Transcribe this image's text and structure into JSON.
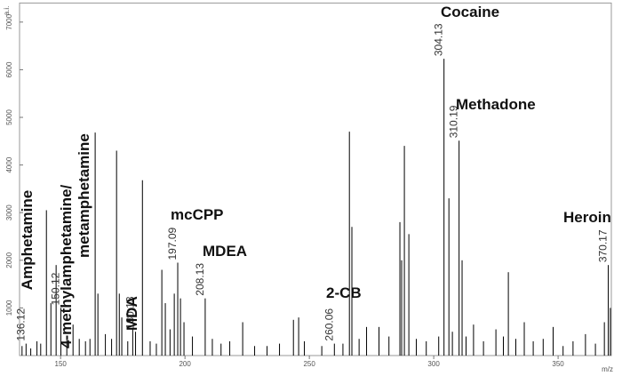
{
  "chart_data": {
    "type": "spectrum",
    "y_axis_label": "a.i.",
    "x_axis_label": "m/z",
    "xlim": [
      133.5,
      371.4
    ],
    "ylim": [
      0,
      7400
    ],
    "xticks": [
      150,
      200,
      250,
      300,
      350
    ],
    "yticks": [
      1000,
      2000,
      3000,
      4000,
      5000,
      6000,
      7000
    ],
    "color": "#000000",
    "x": [
      134.5,
      138.0,
      140.5,
      142.0,
      144.3,
      146.1,
      148.2,
      152.5,
      155.0,
      157.5,
      160.0,
      161.8,
      163.9,
      165.0,
      168.0,
      170.5,
      172.5,
      173.6,
      174.6,
      177.0,
      179.0,
      182.9,
      186.0,
      188.5,
      190.7,
      192.1,
      194.0,
      195.7,
      198.2,
      199.6,
      203.0,
      211.0,
      214.5,
      218.0,
      223.2,
      228.0,
      233.0,
      238.0,
      243.6,
      245.7,
      248.0,
      255.0,
      263.5,
      266.1,
      267.1,
      270.0,
      273.0,
      278.0,
      282.0,
      286.4,
      287.1,
      288.2,
      290.0,
      293.0,
      297.0,
      302.0,
      306.1,
      307.5,
      311.4,
      313.0,
      316.0,
      320.0,
      325.0,
      328.0,
      330.0,
      333.0,
      336.4,
      340.0,
      344.0,
      348.0,
      352.0,
      356.0,
      361.0,
      365.0,
      368.6,
      371.0
    ],
    "values": [
      200,
      150,
      300,
      250,
      3050,
      1100,
      1900,
      400,
      650,
      350,
      300,
      350,
      4680,
      1300,
      450,
      350,
      4300,
      1300,
      800,
      300,
      550,
      3680,
      300,
      250,
      1800,
      1100,
      550,
      1300,
      1200,
      700,
      400,
      350,
      250,
      300,
      700,
      200,
      200,
      250,
      750,
      800,
      300,
      200,
      250,
      4700,
      2700,
      350,
      600,
      600,
      400,
      2800,
      2000,
      4400,
      2550,
      350,
      300,
      400,
      3300,
      500,
      2000,
      400,
      650,
      300,
      550,
      400,
      1750,
      350,
      700,
      300,
      350,
      600,
      200,
      300,
      450,
      250,
      700,
      1000
    ],
    "peak_labels": [
      {
        "x": 136.12,
        "y": 250,
        "compound": [
          "Amphetamine"
        ]
      },
      {
        "x": 150.12,
        "y": 1000,
        "compound": [
          "4-methylamphetamine/",
          "metamphetamine"
        ]
      },
      {
        "x": 180.13,
        "y": 500,
        "compound": [
          "MDA"
        ]
      },
      {
        "x": 197.09,
        "y": 1950,
        "compound": [
          "mcCPP"
        ]
      },
      {
        "x": 208.13,
        "y": 1200,
        "compound": [
          "MDEA"
        ]
      },
      {
        "x": 260.06,
        "y": 250,
        "compound": [
          "2-CB"
        ]
      },
      {
        "x": 304.13,
        "y": 6230,
        "compound": [
          "Cocaine"
        ]
      },
      {
        "x": 310.19,
        "y": 4510,
        "compound": [
          "Methadone"
        ]
      },
      {
        "x": 370.17,
        "y": 1900,
        "compound": [
          "Heroin"
        ]
      }
    ]
  }
}
